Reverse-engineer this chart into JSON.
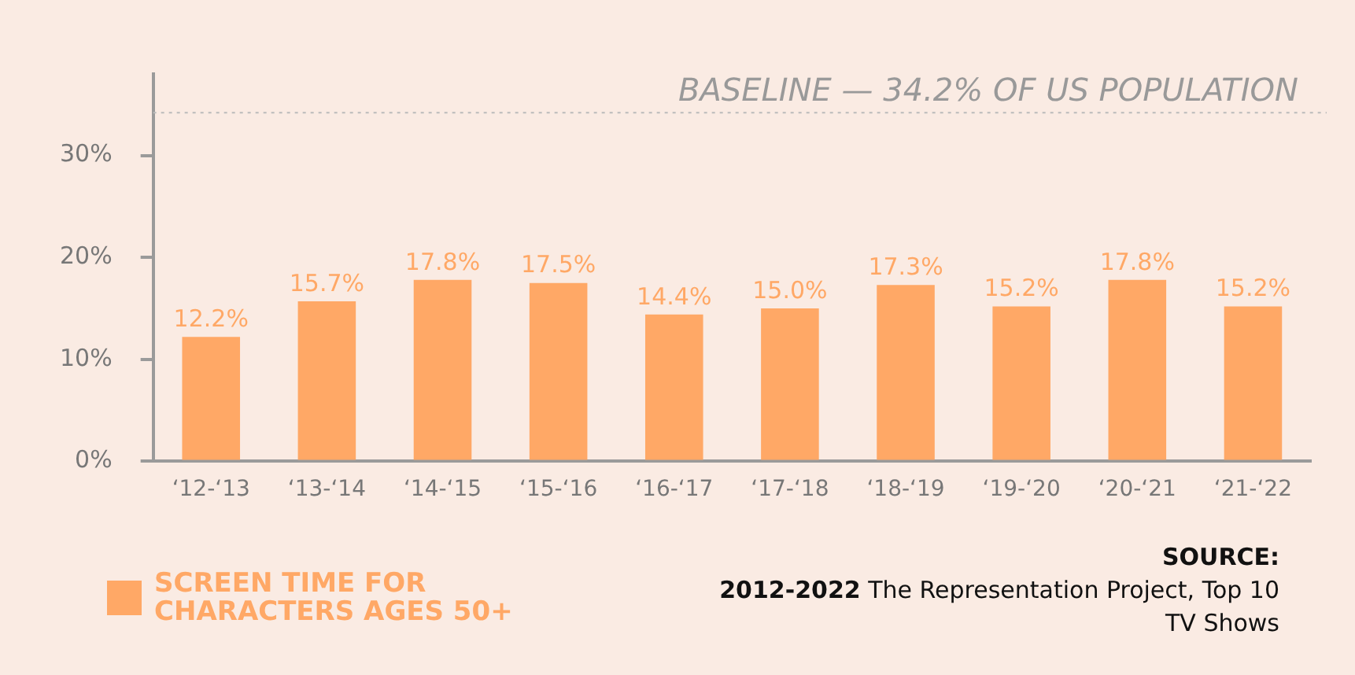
{
  "chart_data": {
    "type": "bar",
    "categories": [
      "‘12-‘13",
      "‘13-‘14",
      "‘14-‘15",
      "‘15-‘16",
      "‘16-‘17",
      "‘17-‘18",
      "‘18-‘19",
      "‘19-‘20",
      "‘20-‘21",
      "‘21-‘22"
    ],
    "series": [
      {
        "name": "SCREEN TIME FOR CHARACTERS AGES 50+",
        "color": "#ffa866",
        "values": [
          12.2,
          15.7,
          17.8,
          17.5,
          14.4,
          15.0,
          17.3,
          15.2,
          17.8,
          15.2
        ]
      }
    ],
    "value_labels": [
      "12.2%",
      "15.7%",
      "17.8%",
      "17.5%",
      "14.4%",
      "15.0%",
      "17.3%",
      "15.2%",
      "17.8%",
      "15.2%"
    ],
    "ylim": [
      0,
      38
    ],
    "yticks": [
      {
        "value": 0,
        "label": "0%"
      },
      {
        "value": 10,
        "label": "10%"
      },
      {
        "value": 20,
        "label": "20%"
      },
      {
        "value": 30,
        "label": "30%"
      }
    ],
    "grid": false,
    "legend": "bottom left",
    "ref_lines": [
      {
        "axis": "y",
        "value": 34.2,
        "label": "BASELINE — 34.2% OF US POPULATION",
        "color": "#bbbbbb",
        "line_style": "dotted"
      }
    ],
    "annotations": [
      "SOURCE:",
      "2012-2022 The Representation Project, Top 10 TV Shows"
    ]
  }
}
